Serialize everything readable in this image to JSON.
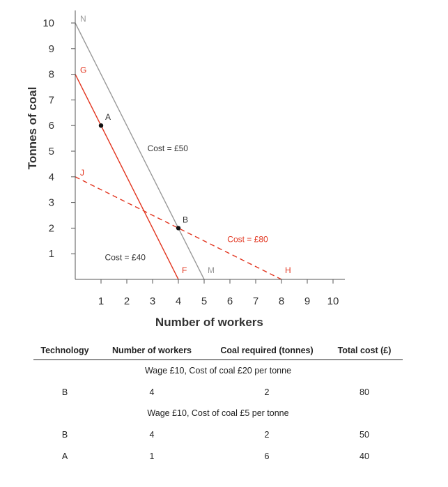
{
  "chart_data": {
    "type": "line",
    "xlabel": "Number of workers",
    "ylabel": "Tonnes of coal",
    "xlim": [
      0,
      10
    ],
    "ylim": [
      0,
      10
    ],
    "xticks": [
      1,
      2,
      3,
      4,
      5,
      6,
      7,
      8,
      9,
      10
    ],
    "yticks": [
      1,
      2,
      3,
      4,
      5,
      6,
      7,
      8,
      9,
      10
    ],
    "series": [
      {
        "name": "Cost = £50",
        "color": "#999999",
        "dashed": false,
        "start_label": "N",
        "end_label": "M",
        "x": [
          0,
          5
        ],
        "y": [
          10,
          0
        ]
      },
      {
        "name": "Cost = £40",
        "color": "#e2341e",
        "dashed": false,
        "start_label": "G",
        "end_label": "F",
        "x": [
          0,
          4
        ],
        "y": [
          8,
          0
        ]
      },
      {
        "name": "Cost = £80",
        "color": "#e2341e",
        "dashed": true,
        "start_label": "J",
        "end_label": "H",
        "x": [
          0,
          8
        ],
        "y": [
          4,
          0
        ]
      }
    ],
    "points": [
      {
        "label": "A",
        "x": 1,
        "y": 6
      },
      {
        "label": "B",
        "x": 4,
        "y": 2
      }
    ]
  },
  "table": {
    "headers": [
      "Technology",
      "Number of workers",
      "Coal required (tonnes)",
      "Total cost (£)"
    ],
    "sections": [
      {
        "title": "Wage £10, Cost of coal £20 per tonne",
        "rows": [
          [
            "B",
            "4",
            "2",
            "80"
          ]
        ]
      },
      {
        "title": "Wage £10, Cost of coal £5 per tonne",
        "rows": [
          [
            "B",
            "4",
            "2",
            "50"
          ],
          [
            "A",
            "1",
            "6",
            "40"
          ]
        ]
      }
    ]
  }
}
